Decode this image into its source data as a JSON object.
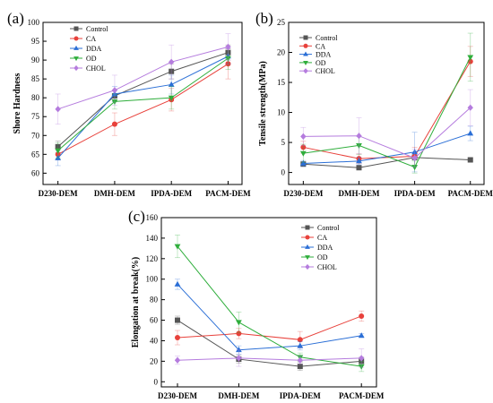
{
  "colors": {
    "Control": "#555555",
    "CA": "#e8413b",
    "DDA": "#2b6fd6",
    "OD": "#2fae3c",
    "CHOL": "#b57cde"
  },
  "chart_data": [
    {
      "id": "a",
      "panel_label": "(a)",
      "type": "line",
      "categories": [
        "D230-DEM",
        "DMH-DEM",
        "IPDA-DEM",
        "PACM-DEM"
      ],
      "ylabel": "Shore Hardness",
      "ylim": [
        57,
        100
      ],
      "yticks": [
        60,
        65,
        70,
        75,
        80,
        85,
        90,
        95,
        100
      ],
      "legend_position": "top-left",
      "series": [
        {
          "name": "Control",
          "marker": "square",
          "values": [
            67,
            80.5,
            87,
            92
          ],
          "errors": [
            1.5,
            1.5,
            2,
            2
          ]
        },
        {
          "name": "CA",
          "marker": "circle",
          "values": [
            65,
            73,
            79.5,
            89
          ],
          "errors": [
            1.5,
            3,
            3,
            4
          ]
        },
        {
          "name": "DDA",
          "marker": "triangle-up",
          "values": [
            64,
            81,
            83.5,
            91
          ],
          "errors": [
            2,
            2,
            2.5,
            2
          ]
        },
        {
          "name": "OD",
          "marker": "triangle-down",
          "values": [
            66,
            79,
            80,
            90.5
          ],
          "errors": [
            2,
            2,
            3,
            3
          ]
        },
        {
          "name": "CHOL",
          "marker": "diamond",
          "values": [
            77,
            82,
            89.5,
            93.5
          ],
          "errors": [
            4,
            4,
            4.5,
            3.5
          ]
        }
      ]
    },
    {
      "id": "b",
      "panel_label": "(b)",
      "type": "line",
      "categories": [
        "D230-DEM",
        "DMH-DEM",
        "IPDA-DEM",
        "PACM-DEM"
      ],
      "ylabel": "Tensile strength(MPa)",
      "ylim": [
        -2,
        25
      ],
      "yticks": [
        0,
        5,
        10,
        15,
        20,
        25
      ],
      "legend_position": "top-left",
      "series": [
        {
          "name": "Control",
          "marker": "square",
          "values": [
            1.4,
            0.8,
            2.5,
            2.1
          ],
          "errors": [
            0.3,
            0.3,
            0.4,
            0.2
          ]
        },
        {
          "name": "CA",
          "marker": "circle",
          "values": [
            4.2,
            2.3,
            2.7,
            18.5
          ],
          "errors": [
            1,
            0.8,
            1.5,
            2.5
          ]
        },
        {
          "name": "DDA",
          "marker": "triangle-up",
          "values": [
            1.5,
            1.9,
            3.4,
            6.5
          ],
          "errors": [
            0.5,
            0.6,
            3.3,
            1.2
          ]
        },
        {
          "name": "OD",
          "marker": "triangle-down",
          "values": [
            3.2,
            4.5,
            0.9,
            19.2
          ],
          "errors": [
            1.5,
            1.5,
            1,
            4
          ]
        },
        {
          "name": "CHOL",
          "marker": "diamond",
          "values": [
            6,
            6.1,
            2.4,
            10.8
          ],
          "errors": [
            1.5,
            3,
            1.5,
            3
          ]
        }
      ]
    },
    {
      "id": "c",
      "panel_label": "(c)",
      "type": "line",
      "categories": [
        "D230-DEM",
        "DMH-DEM",
        "IPDA-DEM",
        "PACM-DEM"
      ],
      "ylabel": "Elongation at break(%)",
      "ylim": [
        -5,
        160
      ],
      "yticks": [
        0,
        20,
        40,
        60,
        80,
        100,
        120,
        140,
        160
      ],
      "legend_position": "top-right",
      "series": [
        {
          "name": "Control",
          "marker": "square",
          "values": [
            60,
            22,
            15,
            20
          ],
          "errors": [
            4,
            4,
            4,
            4
          ]
        },
        {
          "name": "CA",
          "marker": "circle",
          "values": [
            43,
            47,
            41,
            64
          ],
          "errors": [
            7,
            5,
            8,
            5
          ]
        },
        {
          "name": "DDA",
          "marker": "triangle-up",
          "values": [
            95,
            31,
            35,
            45
          ],
          "errors": [
            5,
            4,
            4,
            2
          ]
        },
        {
          "name": "OD",
          "marker": "triangle-down",
          "values": [
            132,
            58,
            24,
            15
          ],
          "errors": [
            11,
            10,
            4,
            5
          ]
        },
        {
          "name": "CHOL",
          "marker": "diamond",
          "values": [
            21,
            23,
            21,
            23
          ],
          "errors": [
            4,
            8,
            4,
            9
          ]
        }
      ]
    }
  ]
}
